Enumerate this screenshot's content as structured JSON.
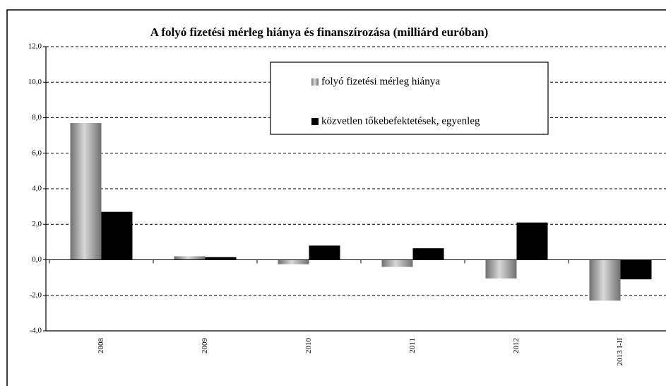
{
  "chart_data": {
    "type": "bar",
    "title": "A folyó fizetési mérleg hiánya és finanszírozása (milliárd euróban)",
    "categories": [
      "2008",
      "2009",
      "2010",
      "2011",
      "2012",
      "2013 I-II"
    ],
    "series": [
      {
        "name": "folyó fizetési mérleg hiánya",
        "color": "#707070",
        "values": [
          7.7,
          0.2,
          -0.25,
          -0.4,
          -1.05,
          -2.3
        ]
      },
      {
        "name": "közvetlen tőkebefektetések, egyenleg",
        "color": "#000000",
        "values": [
          2.7,
          0.15,
          0.8,
          0.65,
          2.1,
          -1.1
        ]
      }
    ],
    "ylim": [
      -4,
      12
    ],
    "yticks": [
      {
        "value": -4,
        "label": "-4,0"
      },
      {
        "value": -2,
        "label": "-2,0"
      },
      {
        "value": 0,
        "label": "0,0"
      },
      {
        "value": 2,
        "label": "2,0"
      },
      {
        "value": 4,
        "label": "4,0"
      },
      {
        "value": 6,
        "label": "6,0"
      },
      {
        "value": 8,
        "label": "8,0"
      },
      {
        "value": 10,
        "label": "10,0"
      },
      {
        "value": 12,
        "label": "12,0"
      }
    ],
    "grid": true
  }
}
